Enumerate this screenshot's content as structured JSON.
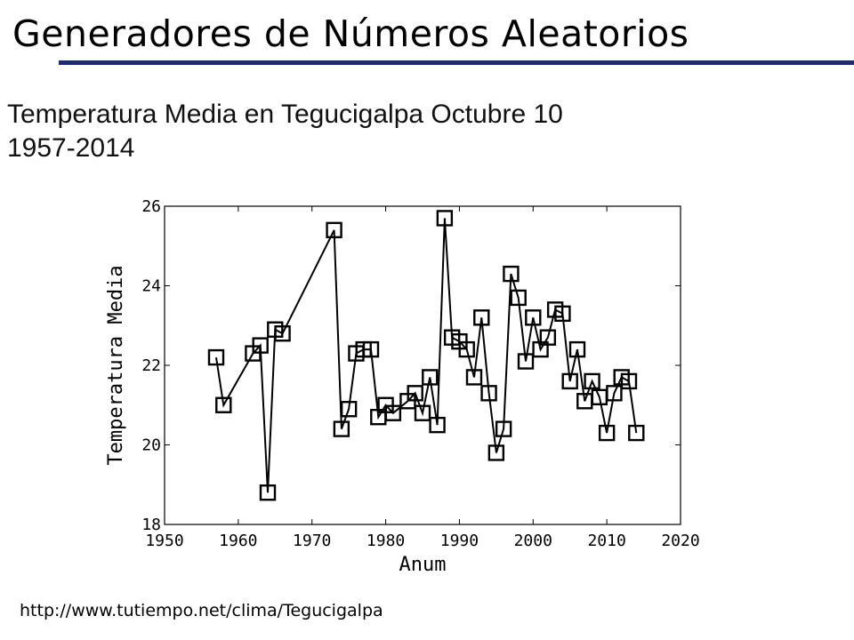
{
  "slide": {
    "title": "Generadores de Números Aleatorios",
    "subtitle_line1": "Temperatura Media en Tegucigalpa Octubre 10",
    "subtitle_line2": "1957-2014",
    "source_url": "http://www.tutiempo.net/clima/Tegucigalpa",
    "accent_color": "#1f2a6b"
  },
  "chart_data": {
    "type": "line",
    "marker": "square",
    "title": "",
    "xlabel": "Anum",
    "ylabel": "Temperatura Media",
    "xlim": [
      1950,
      2020
    ],
    "ylim": [
      18,
      26
    ],
    "x_ticks": [
      "1950",
      "1960",
      "1970",
      "1980",
      "1990",
      "2000",
      "2010",
      "2020"
    ],
    "y_ticks": [
      "18",
      "20",
      "22",
      "24",
      "26"
    ],
    "grid": false,
    "series": [
      {
        "x": [
          1957,
          1958,
          1962,
          1963,
          1964,
          1965,
          1966,
          1973,
          1974,
          1975,
          1976,
          1977,
          1978,
          1979,
          1980,
          1981,
          1983,
          1984,
          1985,
          1986,
          1987,
          1988,
          1989,
          1990,
          1991,
          1992,
          1993,
          1994,
          1995,
          1996,
          1997,
          1998,
          1999,
          2000,
          2001,
          2002,
          2003,
          2004,
          2005,
          2006,
          2007,
          2008,
          2009,
          2010,
          2011,
          2012,
          2013,
          2014
        ],
        "y": [
          22.2,
          21.0,
          22.3,
          22.5,
          18.8,
          22.9,
          22.8,
          25.4,
          20.4,
          20.9,
          22.3,
          22.4,
          22.4,
          20.7,
          21.0,
          20.8,
          21.1,
          21.3,
          20.8,
          21.7,
          20.5,
          25.7,
          22.7,
          22.6,
          22.4,
          21.7,
          23.2,
          21.3,
          19.8,
          20.4,
          24.3,
          23.7,
          22.1,
          23.2,
          22.4,
          22.7,
          23.4,
          23.3,
          21.6,
          22.4,
          21.1,
          21.6,
          21.2,
          20.3,
          21.3,
          21.7,
          21.6,
          20.3
        ]
      }
    ]
  }
}
